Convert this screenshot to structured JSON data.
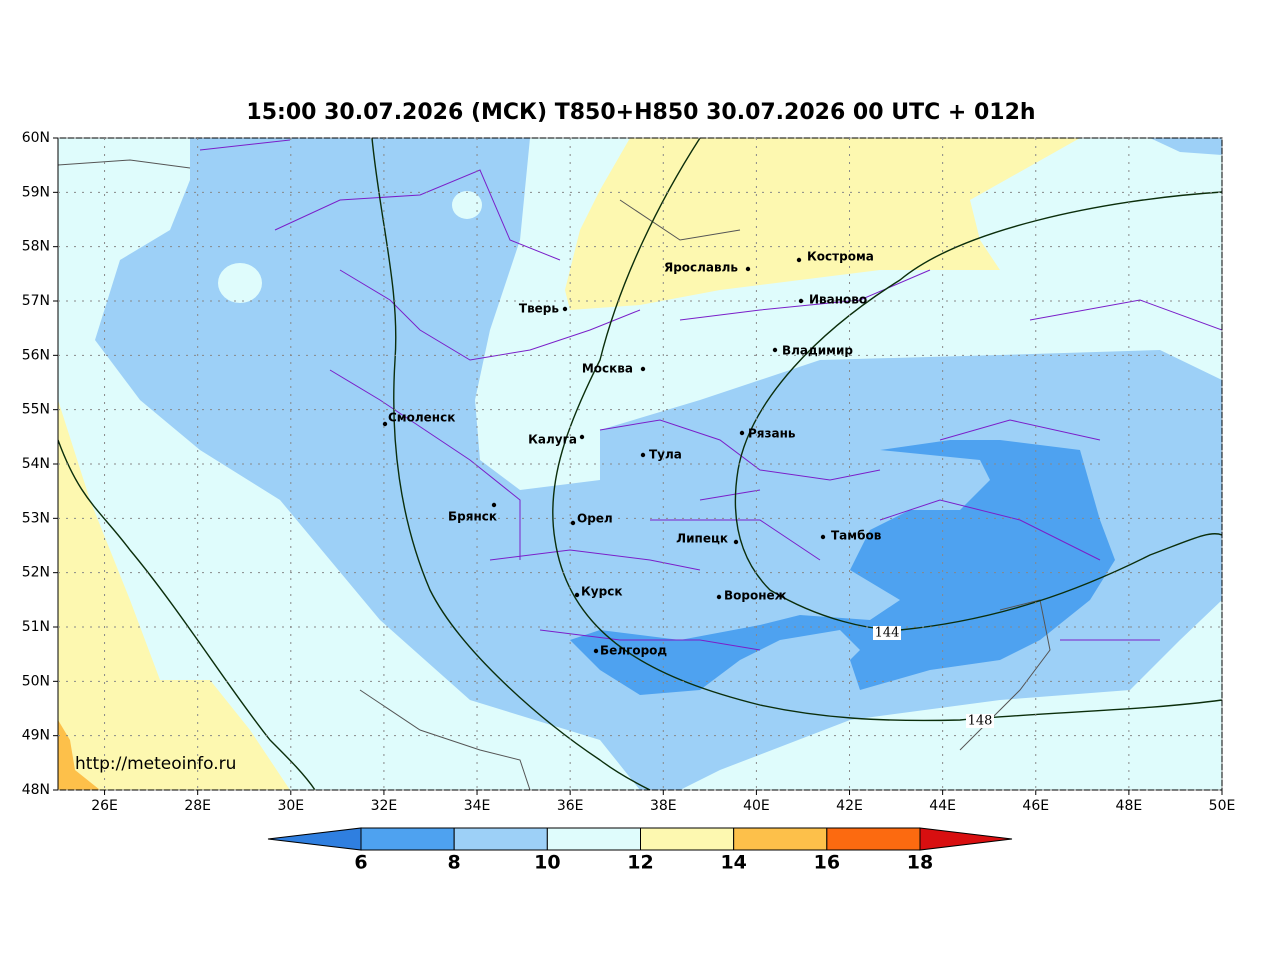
{
  "map": {
    "title": "15:00 30.07.2026 (МСК) T850+H850 30.07.2026 00 UTC + 012h",
    "url": "http://meteoinfo.ru",
    "lon_ticks": [
      {
        "value": 26,
        "label": "26E"
      },
      {
        "value": 28,
        "label": "28E"
      },
      {
        "value": 30,
        "label": "30E"
      },
      {
        "value": 32,
        "label": "32E"
      },
      {
        "value": 34,
        "label": "34E"
      },
      {
        "value": 36,
        "label": "36E"
      },
      {
        "value": 38,
        "label": "38E"
      },
      {
        "value": 40,
        "label": "40E"
      },
      {
        "value": 42,
        "label": "42E"
      },
      {
        "value": 44,
        "label": "44E"
      },
      {
        "value": 46,
        "label": "46E"
      },
      {
        "value": 48,
        "label": "48E"
      },
      {
        "value": 50,
        "label": "50E"
      }
    ],
    "lat_ticks": [
      {
        "value": 60,
        "label": "60N"
      },
      {
        "value": 59,
        "label": "59N"
      },
      {
        "value": 58,
        "label": "58N"
      },
      {
        "value": 57,
        "label": "57N"
      },
      {
        "value": 56,
        "label": "56N"
      },
      {
        "value": 55,
        "label": "55N"
      },
      {
        "value": 54,
        "label": "54N"
      },
      {
        "value": 53,
        "label": "53N"
      },
      {
        "value": 52,
        "label": "52N"
      },
      {
        "value": 51,
        "label": "51N"
      },
      {
        "value": 50,
        "label": "50N"
      },
      {
        "value": 49,
        "label": "49N"
      },
      {
        "value": 48,
        "label": "48N"
      }
    ],
    "lon_range": [
      25,
      50
    ],
    "lat_range": [
      48,
      60
    ],
    "cities": [
      "Кострома",
      "Ярославль",
      "Тверь",
      "Иваново",
      "Владимир",
      "Москва",
      "Смоленск",
      "Калуга",
      "Рязань",
      "Тула",
      "Брянск",
      "Орел",
      "Липецк",
      "Тамбов",
      "Курск",
      "Воронеж",
      "Белгород"
    ],
    "contour_labels": [
      "144",
      "148"
    ],
    "colorbar": {
      "ticks": [
        6,
        8,
        10,
        12,
        14,
        16,
        18
      ],
      "colors": [
        "#2f7fe0",
        "#4ea2f0",
        "#9dd0f7",
        "#dffcfc",
        "#fdf8b0",
        "#fdc04a",
        "#fc6a10",
        "#d80f10"
      ]
    }
  }
}
